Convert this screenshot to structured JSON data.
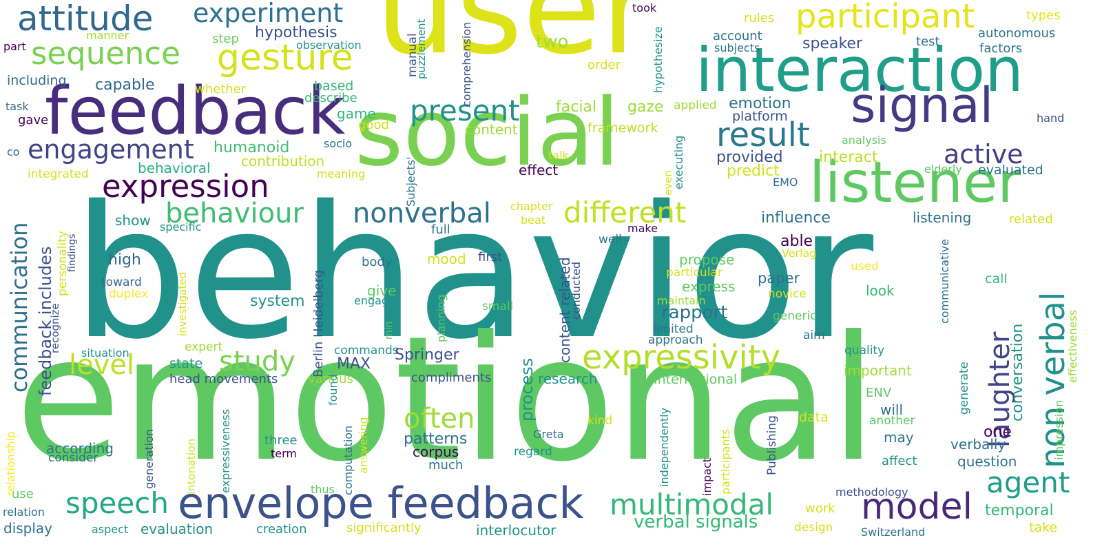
{
  "word_cloud": {
    "palette": {
      "deep_purple": "#440154",
      "indigo": "#472d7b",
      "blue": "#3b528b",
      "steel": "#2c728e",
      "teal": "#21918c",
      "green_teal": "#28ae80",
      "green": "#5ec962",
      "lime": "#addc30",
      "yellow": "#dde318",
      "gold": "#fde725"
    },
    "words": [
      {
        "text": "behavior",
        "color": "#21918c"
      },
      {
        "text": "emotional",
        "color": "#5ec962"
      },
      {
        "text": "user",
        "color": "#dde318"
      },
      {
        "text": "social",
        "color": "#7ad151"
      },
      {
        "text": "feedback",
        "color": "#472d7b"
      },
      {
        "text": "interaction",
        "color": "#1f9e89"
      },
      {
        "text": "listener",
        "color": "#5ec962"
      },
      {
        "text": "signal",
        "color": "#443983"
      },
      {
        "text": "envelope feedback",
        "color": "#3b528b"
      },
      {
        "text": "expressivity",
        "color": "#b5de2b"
      },
      {
        "text": "model",
        "color": "#482878"
      },
      {
        "text": "attitude",
        "color": "#31688e"
      },
      {
        "text": "sequence",
        "color": "#7ad151"
      },
      {
        "text": "gesture",
        "color": "#d2e21b"
      },
      {
        "text": "participant",
        "color": "#e5e419"
      },
      {
        "text": "experiment",
        "color": "#2c728e"
      },
      {
        "text": "expression",
        "color": "#440154"
      },
      {
        "text": "engagement",
        "color": "#414487"
      },
      {
        "text": "present",
        "color": "#21918c"
      },
      {
        "text": "result",
        "color": "#2a788e"
      },
      {
        "text": "behaviour",
        "color": "#3fbc73"
      },
      {
        "text": "different",
        "color": "#c2df23"
      },
      {
        "text": "nonverbal",
        "color": "#2c728e"
      },
      {
        "text": "active",
        "color": "#433e85"
      },
      {
        "text": "multimodal",
        "color": "#35b779"
      },
      {
        "text": "speech",
        "color": "#22a884"
      },
      {
        "text": "study",
        "color": "#7ad151"
      },
      {
        "text": "often",
        "color": "#a0da39"
      },
      {
        "text": "non verbal",
        "color": "#21918c"
      },
      {
        "text": "laughter",
        "color": "#414487"
      },
      {
        "text": "agent",
        "color": "#1f9e89"
      },
      {
        "text": "level",
        "color": "#bddf26"
      },
      {
        "text": "communication",
        "color": "#2d708e"
      },
      {
        "text": "feedback includes",
        "color": "#3b528b"
      },
      {
        "text": "hypothesis",
        "color": "#3b528b"
      },
      {
        "text": "capable",
        "color": "#31688e"
      },
      {
        "text": "humanoid",
        "color": "#3fbc73"
      },
      {
        "text": "behavioral",
        "color": "#28ae80"
      },
      {
        "text": "contribution",
        "color": "#c2df23"
      },
      {
        "text": "integrated",
        "color": "#d2e21b"
      },
      {
        "text": "meaning",
        "color": "#d2e21b"
      },
      {
        "text": "speaker",
        "color": "#3b528b"
      },
      {
        "text": "account",
        "color": "#2c728e"
      },
      {
        "text": "subjects",
        "color": "#2c728e"
      },
      {
        "text": "test",
        "color": "#2c728e"
      },
      {
        "text": "autonomous",
        "color": "#2c728e"
      },
      {
        "text": "factors",
        "color": "#2c728e"
      },
      {
        "text": "types",
        "color": "#e5e419"
      },
      {
        "text": "rules",
        "color": "#d2e21b"
      },
      {
        "text": "took",
        "color": "#440154"
      },
      {
        "text": "two",
        "color": "#a0da39"
      },
      {
        "text": "order",
        "color": "#d2e21b"
      },
      {
        "text": "step",
        "color": "#6ece58"
      },
      {
        "text": "observation",
        "color": "#21918c"
      },
      {
        "text": "manner",
        "color": "#a5db36"
      },
      {
        "text": "part",
        "color": "#440154"
      },
      {
        "text": "including",
        "color": "#31688e"
      },
      {
        "text": "whether",
        "color": "#d2e21b"
      },
      {
        "text": "based",
        "color": "#35b779"
      },
      {
        "text": "describe",
        "color": "#35b779"
      },
      {
        "text": "game",
        "color": "#35b779"
      },
      {
        "text": "good",
        "color": "#d2e21b"
      },
      {
        "text": "content",
        "color": "#a0da39"
      },
      {
        "text": "facial",
        "color": "#a0da39"
      },
      {
        "text": "gaze",
        "color": "#a0da39"
      },
      {
        "text": "framework",
        "color": "#c2df23"
      },
      {
        "text": "applied",
        "color": "#a0da39"
      },
      {
        "text": "emotion",
        "color": "#2c728e"
      },
      {
        "text": "platform",
        "color": "#3b528b"
      },
      {
        "text": "analysis",
        "color": "#5ec962"
      },
      {
        "text": "hand",
        "color": "#3b528b"
      },
      {
        "text": "task",
        "color": "#31688e"
      },
      {
        "text": "gave",
        "color": "#440154"
      },
      {
        "text": "co",
        "color": "#31688e"
      },
      {
        "text": "socio",
        "color": "#2c728e"
      },
      {
        "text": "provided",
        "color": "#3b528b"
      },
      {
        "text": "predict",
        "color": "#d2e21b"
      },
      {
        "text": "interact",
        "color": "#bddf26"
      },
      {
        "text": "EMO",
        "color": "#2c728e"
      },
      {
        "text": "elderly",
        "color": "#5ec962"
      },
      {
        "text": "evaluated",
        "color": "#2c728e"
      },
      {
        "text": "effect",
        "color": "#440154"
      },
      {
        "text": "talk",
        "color": "#d2e21b"
      },
      {
        "text": "influence",
        "color": "#2c728e"
      },
      {
        "text": "listening",
        "color": "#2c728e"
      },
      {
        "text": "related",
        "color": "#d2e21b"
      },
      {
        "text": "show",
        "color": "#21918c"
      },
      {
        "text": "specific",
        "color": "#21918c"
      },
      {
        "text": "chapter",
        "color": "#d2e21b"
      },
      {
        "text": "beat",
        "color": "#d2e21b"
      },
      {
        "text": "full",
        "color": "#2c728e"
      },
      {
        "text": "make",
        "color": "#440154"
      },
      {
        "text": "well",
        "color": "#2c728e"
      },
      {
        "text": "able",
        "color": "#440154"
      },
      {
        "text": "Verlag",
        "color": "#d2e21b"
      },
      {
        "text": "high",
        "color": "#31688e"
      },
      {
        "text": "toward",
        "color": "#31688e"
      },
      {
        "text": "duplex",
        "color": "#fde725"
      },
      {
        "text": "mood",
        "color": "#d2e21b"
      },
      {
        "text": "first",
        "color": "#3b528b"
      },
      {
        "text": "body",
        "color": "#2c728e"
      },
      {
        "text": "propose",
        "color": "#5ec962"
      },
      {
        "text": "particular",
        "color": "#d2e21b"
      },
      {
        "text": "express",
        "color": "#5ec962"
      },
      {
        "text": "paper",
        "color": "#2c728e"
      },
      {
        "text": "look",
        "color": "#35b779"
      },
      {
        "text": "used",
        "color": "#fde725"
      },
      {
        "text": "call",
        "color": "#35b779"
      },
      {
        "text": "system",
        "color": "#21918c"
      },
      {
        "text": "give",
        "color": "#5ec962"
      },
      {
        "text": "engage",
        "color": "#21918c"
      },
      {
        "text": "small",
        "color": "#5ec962"
      },
      {
        "text": "maintain",
        "color": "#a0da39"
      },
      {
        "text": "rapport",
        "color": "#2c728e"
      },
      {
        "text": "novice",
        "color": "#d2e21b"
      },
      {
        "text": "generic",
        "color": "#5ec962"
      },
      {
        "text": "limited",
        "color": "#2c728e"
      },
      {
        "text": "approach",
        "color": "#2c728e"
      },
      {
        "text": "aim",
        "color": "#2c728e"
      },
      {
        "text": "expert",
        "color": "#a0da39"
      },
      {
        "text": "situation",
        "color": "#21918c"
      },
      {
        "text": "commands",
        "color": "#21918c"
      },
      {
        "text": "state",
        "color": "#21918c"
      },
      {
        "text": "MAX",
        "color": "#3b528b"
      },
      {
        "text": "Springer",
        "color": "#3b528b"
      },
      {
        "text": "quality",
        "color": "#21918c"
      },
      {
        "text": "head movements",
        "color": "#3b528b"
      },
      {
        "text": "various",
        "color": "#a0da39"
      },
      {
        "text": "compliments",
        "color": "#3b528b"
      },
      {
        "text": "research",
        "color": "#21918c"
      },
      {
        "text": "International",
        "color": "#5ec962"
      },
      {
        "text": "important",
        "color": "#a0da39"
      },
      {
        "text": "ENV",
        "color": "#5ec962"
      },
      {
        "text": "will",
        "color": "#2c728e"
      },
      {
        "text": "patterns",
        "color": "#2c728e"
      },
      {
        "text": "corpus",
        "color": "#440154"
      },
      {
        "text": "Greta",
        "color": "#2c728e"
      },
      {
        "text": "kind",
        "color": "#d2e21b"
      },
      {
        "text": "data",
        "color": "#d2e21b"
      },
      {
        "text": "another",
        "color": "#5ec962"
      },
      {
        "text": "one",
        "color": "#440154"
      },
      {
        "text": "may",
        "color": "#2c728e"
      },
      {
        "text": "according",
        "color": "#2c728e"
      },
      {
        "text": "consider",
        "color": "#2c728e"
      },
      {
        "text": "three",
        "color": "#21918c"
      },
      {
        "text": "term",
        "color": "#440154"
      },
      {
        "text": "regard",
        "color": "#21918c"
      },
      {
        "text": "much",
        "color": "#2c728e"
      },
      {
        "text": "verbally",
        "color": "#2c728e"
      },
      {
        "text": "question",
        "color": "#2c728e"
      },
      {
        "text": "affect",
        "color": "#21918c"
      },
      {
        "text": "use",
        "color": "#5ec962"
      },
      {
        "text": "relation",
        "color": "#2c728e"
      },
      {
        "text": "display",
        "color": "#2c728e"
      },
      {
        "text": "thus",
        "color": "#5ec962"
      },
      {
        "text": "aspect",
        "color": "#21918c"
      },
      {
        "text": "evaluation",
        "color": "#21918c"
      },
      {
        "text": "creation",
        "color": "#21918c"
      },
      {
        "text": "significantly",
        "color": "#d2e21b"
      },
      {
        "text": "interlocutor",
        "color": "#21918c"
      },
      {
        "text": "verbal signals",
        "color": "#35b779"
      },
      {
        "text": "methodology",
        "color": "#3b528b"
      },
      {
        "text": "work",
        "color": "#d2e21b"
      },
      {
        "text": "temporal",
        "color": "#35b779"
      },
      {
        "text": "take",
        "color": "#d2e21b"
      },
      {
        "text": "design",
        "color": "#d2e21b"
      },
      {
        "text": "Switzerland",
        "color": "#2c728e"
      },
      {
        "text": "manual",
        "color": "#3b528b"
      },
      {
        "text": "puzzlement",
        "color": "#21918c"
      },
      {
        "text": "comprehension",
        "color": "#3b528b"
      },
      {
        "text": "hypothesize",
        "color": "#21918c"
      },
      {
        "text": "executing",
        "color": "#21918c"
      },
      {
        "text": "even",
        "color": "#d2e21b"
      },
      {
        "text": "Subjects'",
        "color": "#2c728e"
      },
      {
        "text": "personality",
        "color": "#d2e21b"
      },
      {
        "text": "findings",
        "color": "#3b528b"
      },
      {
        "text": "recognize",
        "color": "#3b528b"
      },
      {
        "text": "investigated",
        "color": "#d2e21b"
      },
      {
        "text": "Berlin Heidelberg",
        "color": "#3b528b"
      },
      {
        "text": "min",
        "color": "#5ec962"
      },
      {
        "text": "planning",
        "color": "#5ec962"
      },
      {
        "text": "content related",
        "color": "#3b528b"
      },
      {
        "text": "conducted",
        "color": "#3b528b"
      },
      {
        "text": "process",
        "color": "#21918c"
      },
      {
        "text": "conversation",
        "color": "#21918c"
      },
      {
        "text": "communicative",
        "color": "#2c728e"
      },
      {
        "text": "generate",
        "color": "#21918c"
      },
      {
        "text": "impression",
        "color": "#5ec962"
      },
      {
        "text": "effectiveness",
        "color": "#a0da39"
      },
      {
        "text": "relationship",
        "color": "#fde725"
      },
      {
        "text": "intonation",
        "color": "#d2e21b"
      },
      {
        "text": "generation",
        "color": "#3b528b"
      },
      {
        "text": "expressiveness",
        "color": "#21918c"
      },
      {
        "text": "found",
        "color": "#21918c"
      },
      {
        "text": "computation",
        "color": "#2c728e"
      },
      {
        "text": "answering",
        "color": "#d2e21b"
      },
      {
        "text": "independently",
        "color": "#21918c"
      },
      {
        "text": "impact",
        "color": "#440154"
      },
      {
        "text": "participants",
        "color": "#d2e21b"
      },
      {
        "text": "Publishing",
        "color": "#3b528b"
      }
    ]
  }
}
